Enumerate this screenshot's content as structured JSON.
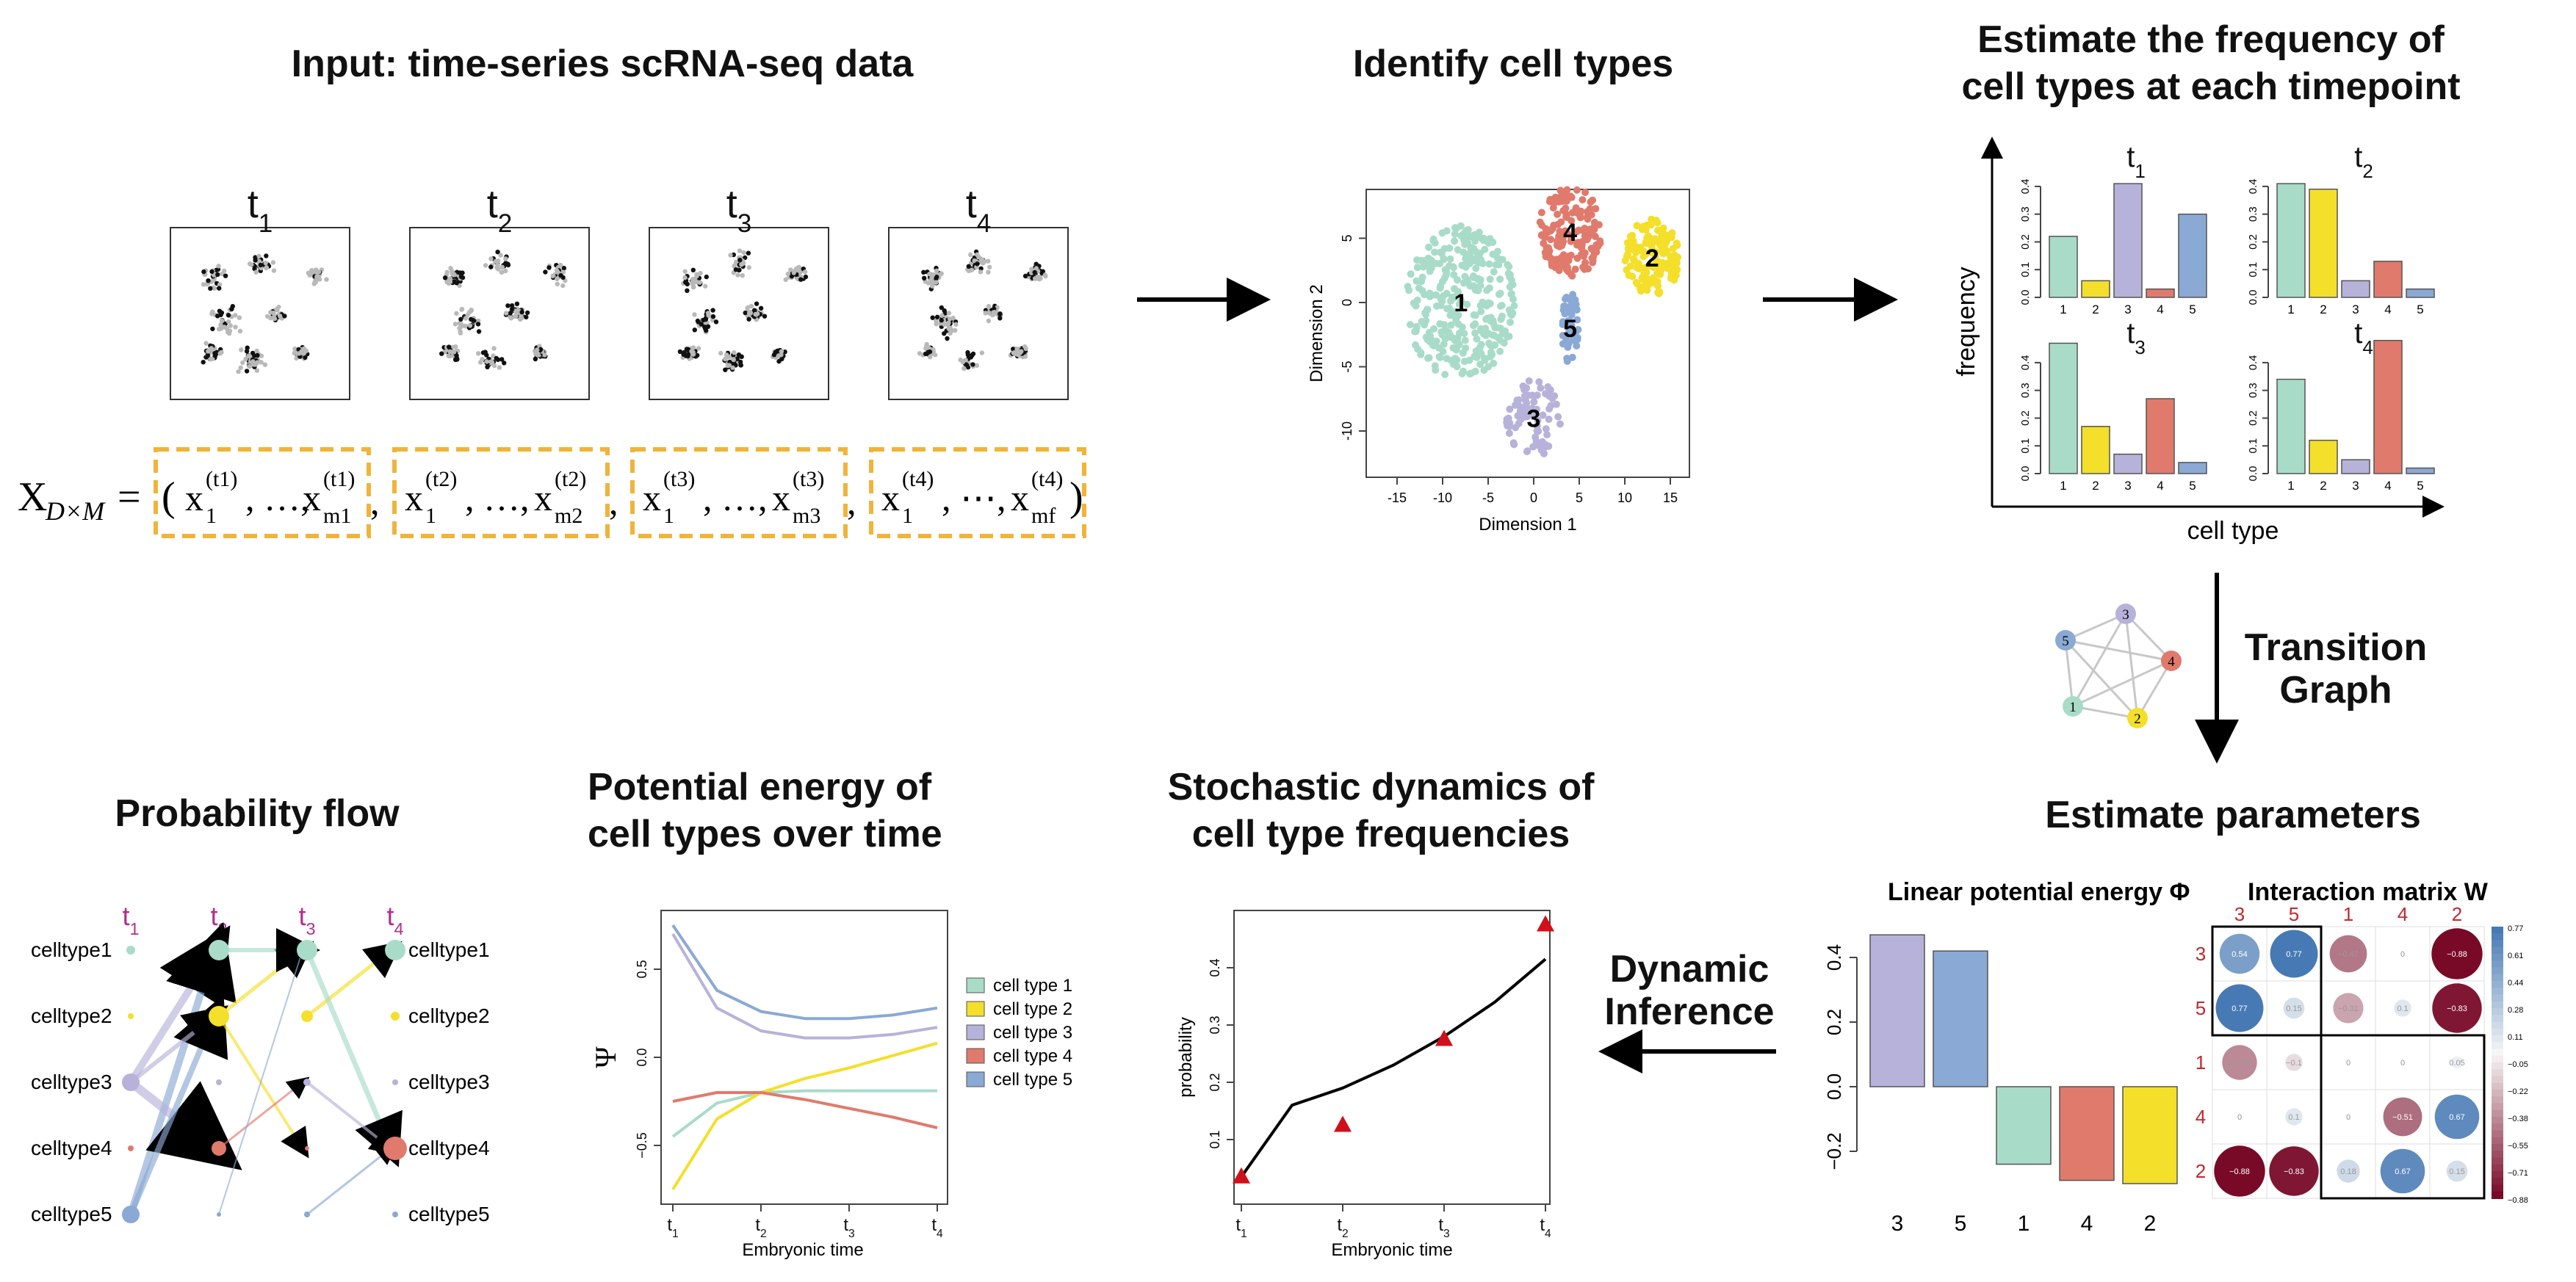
{
  "headings": {
    "input": "Input: time-series scRNA-seq data",
    "identify": "Identify cell types",
    "estimate_freq_l1": "Estimate the frequency of",
    "estimate_freq_l2": "cell types at each timepoint",
    "transition_l1": "Transition",
    "transition_l2": "Graph",
    "estimate_params": "Estimate parameters",
    "dynamic_l1": "Dynamic",
    "dynamic_l2": "Inference",
    "stochastic_l1": "Stochastic dynamics of",
    "stochastic_l2": "cell type frequencies",
    "potential_l1": "Potential energy of",
    "potential_l2": "cell types over time",
    "flow": "Probability flow"
  },
  "timepoints": [
    "t1",
    "t2",
    "t3",
    "t4"
  ],
  "formula": {
    "lhs": "X",
    "lhs_sub": "D×M",
    "eq": "=",
    "open": "(",
    "close": ")",
    "blocks": [
      {
        "a": "x",
        "a_sub": "1",
        "a_sup": "(t1)",
        "sep": ", …, ",
        "b": "x",
        "b_sub": "m1",
        "b_sup": "(t1)"
      },
      {
        "a": "x",
        "a_sub": "1",
        "a_sup": "(t2)",
        "sep": ", …, ",
        "b": "x",
        "b_sub": "m2",
        "b_sup": "(t2)"
      },
      {
        "a": "x",
        "a_sub": "1",
        "a_sup": "(t3)",
        "sep": ", …, ",
        "b": "x",
        "b_sub": "m3",
        "b_sup": "(t3)"
      },
      {
        "a": "x",
        "a_sub": "1",
        "a_sup": "(t4)",
        "sep": ", ⋯, ",
        "b": "x",
        "b_sub": "mf",
        "b_sup": "(t4)"
      }
    ],
    "comma": ","
  },
  "tsne": {
    "xlabel": "Dimension 1",
    "ylabel": "Dimension 2",
    "xticks": [
      "-15",
      "-10",
      "-5",
      "0",
      "5",
      "10",
      "15"
    ],
    "yticks": [
      "5",
      "0",
      "-5",
      "-10"
    ],
    "clusters": [
      {
        "label": "1",
        "color": "#a8dcc8",
        "cx": -8,
        "cy": 0,
        "r": 6
      },
      {
        "label": "2",
        "color": "#f4df2a",
        "cx": 13,
        "cy": 3.5,
        "r": 3
      },
      {
        "label": "3",
        "color": "#b7b2da",
        "cx": 0,
        "cy": -9,
        "r": 3
      },
      {
        "label": "4",
        "color": "#e07a6c",
        "cx": 4,
        "cy": 5.5,
        "r": 3.5
      },
      {
        "label": "5",
        "color": "#8aa9d4",
        "cx": 4,
        "cy": -2,
        "r": 1.5
      }
    ]
  },
  "freq_panel": {
    "ylabel": "frequency",
    "xlabel": "cell type",
    "yticks": [
      "0.0",
      "0.1",
      "0.2",
      "0.3",
      "0.4"
    ],
    "categories": [
      "1",
      "2",
      "3",
      "4",
      "5"
    ],
    "colors": [
      "#a8dcc8",
      "#f4df2a",
      "#b7b2da",
      "#e07a6c",
      "#8aa9d4"
    ]
  },
  "graph_nodes": [
    "1",
    "2",
    "3",
    "4",
    "5"
  ],
  "potential_bar": {
    "title": "Linear potential energy Φ",
    "categories": [
      "3",
      "5",
      "1",
      "4",
      "2"
    ],
    "yticks": [
      "0.4",
      "0.2",
      "0.0",
      "−0.2"
    ],
    "colors": [
      "#b7b2da",
      "#8aa9d4",
      "#a8dcc8",
      "#e07a6c",
      "#f4df2a"
    ]
  },
  "interaction": {
    "title": "Interaction matrix W",
    "order": [
      "3",
      "5",
      "1",
      "4",
      "2"
    ],
    "cells": [
      [
        "0.54",
        "0.77",
        "−0.47",
        "0",
        "−0.88"
      ],
      [
        "0.77",
        "0.15",
        "−0.31",
        "0.1",
        "−0.83"
      ],
      [
        "−0.41",
        "−0.1",
        "0",
        "0",
        "0.05"
      ],
      [
        "0",
        "0.1",
        "0",
        "−0.51",
        "0.67"
      ],
      [
        "−0.88",
        "−0.83",
        "0.18",
        "0.67",
        "0.15"
      ]
    ],
    "legend_ticks": [
      "0.77",
      "0.61",
      "0.44",
      "0.28",
      "0.11",
      "−0.05",
      "−0.22",
      "−0.38",
      "−0.55",
      "−0.71",
      "−0.88"
    ]
  },
  "stochastic": {
    "ylabel": "probability",
    "xlabel": "Embryonic time",
    "yticks": [
      "0.1",
      "0.2",
      "0.3",
      "0.4"
    ],
    "xticks": [
      "t1",
      "t2",
      "t3",
      "t4"
    ]
  },
  "potential_curves": {
    "ylabel": "Ψ",
    "xlabel": "Embryonic time",
    "yticks": [
      "−0.5",
      "0.0",
      "0.5"
    ],
    "xticks": [
      "t1",
      "t2",
      "t3",
      "t4"
    ],
    "legend": [
      "cell type 1",
      "cell type 2",
      "cell type 3",
      "cell type 4",
      "cell type 5"
    ],
    "colors": [
      "#a8dcc8",
      "#f4df2a",
      "#b7b2da",
      "#e07a6c",
      "#8aa9d4"
    ]
  },
  "flow": {
    "celltypes": [
      "celltype1",
      "celltype2",
      "celltype3",
      "celltype4",
      "celltype5"
    ],
    "timepoints": [
      "t1",
      "t2",
      "t3",
      "t4"
    ],
    "colors": [
      "#a8dcc8",
      "#f4df2a",
      "#b7b2da",
      "#e07a6c",
      "#8aa9d4"
    ],
    "tcolor": "#b0308c"
  },
  "chart_data": [
    {
      "type": "bar",
      "title": "t1",
      "categories": [
        "1",
        "2",
        "3",
        "4",
        "5"
      ],
      "values": [
        0.22,
        0.06,
        0.41,
        0.03,
        0.3
      ],
      "ylim": [
        0,
        0.45
      ]
    },
    {
      "type": "bar",
      "title": "t2",
      "categories": [
        "1",
        "2",
        "3",
        "4",
        "5"
      ],
      "values": [
        0.41,
        0.39,
        0.06,
        0.13,
        0.03
      ],
      "ylim": [
        0,
        0.45
      ]
    },
    {
      "type": "bar",
      "title": "t3",
      "categories": [
        "1",
        "2",
        "3",
        "4",
        "5"
      ],
      "values": [
        0.47,
        0.17,
        0.07,
        0.27,
        0.04
      ],
      "ylim": [
        0,
        0.5
      ]
    },
    {
      "type": "bar",
      "title": "t4",
      "categories": [
        "1",
        "2",
        "3",
        "4",
        "5"
      ],
      "values": [
        0.34,
        0.12,
        0.05,
        0.48,
        0.02
      ],
      "ylim": [
        0,
        0.5
      ]
    },
    {
      "type": "bar",
      "title": "Linear potential energy Φ",
      "categories": [
        "3",
        "5",
        "1",
        "4",
        "2"
      ],
      "values": [
        0.47,
        0.42,
        -0.24,
        -0.29,
        -0.3
      ],
      "ylim": [
        -0.3,
        0.5
      ]
    },
    {
      "type": "line",
      "xlabel": "Embryonic time",
      "ylabel": "probability",
      "x": [
        0,
        0.5,
        1,
        1.5,
        2,
        2.5,
        3
      ],
      "x_tick_labels": [
        "t1",
        "t2",
        "t3",
        "t4"
      ],
      "series": [
        {
          "values": [
            0.035,
            0.16,
            0.19,
            0.23,
            0.28,
            0.34,
            0.415
          ]
        },
        {
          "marker": "triangle",
          "x": [
            0,
            1,
            2,
            3
          ],
          "values": [
            0.035,
            0.125,
            0.275,
            0.475
          ]
        }
      ],
      "ylim": [
        0,
        0.49
      ]
    },
    {
      "type": "line",
      "xlabel": "Embryonic time",
      "ylabel": "Ψ",
      "x": [
        0,
        0.5,
        1,
        1.5,
        2,
        2.5,
        3
      ],
      "x_tick_labels": [
        "t1",
        "t2",
        "t3",
        "t4"
      ],
      "series": [
        {
          "name": "cell type 1",
          "values": [
            -0.45,
            -0.26,
            -0.2,
            -0.19,
            -0.19,
            -0.19,
            -0.19
          ]
        },
        {
          "name": "cell type 2",
          "values": [
            -0.75,
            -0.35,
            -0.2,
            -0.12,
            -0.06,
            0.01,
            0.08
          ]
        },
        {
          "name": "cell type 3",
          "values": [
            0.7,
            0.28,
            0.15,
            0.11,
            0.11,
            0.13,
            0.17
          ]
        },
        {
          "name": "cell type 4",
          "values": [
            -0.25,
            -0.2,
            -0.2,
            -0.24,
            -0.29,
            -0.34,
            -0.4
          ]
        },
        {
          "name": "cell type 5",
          "values": [
            0.75,
            0.38,
            0.26,
            0.22,
            0.22,
            0.24,
            0.28
          ]
        }
      ],
      "ylim": [
        -0.8,
        0.8
      ]
    }
  ]
}
